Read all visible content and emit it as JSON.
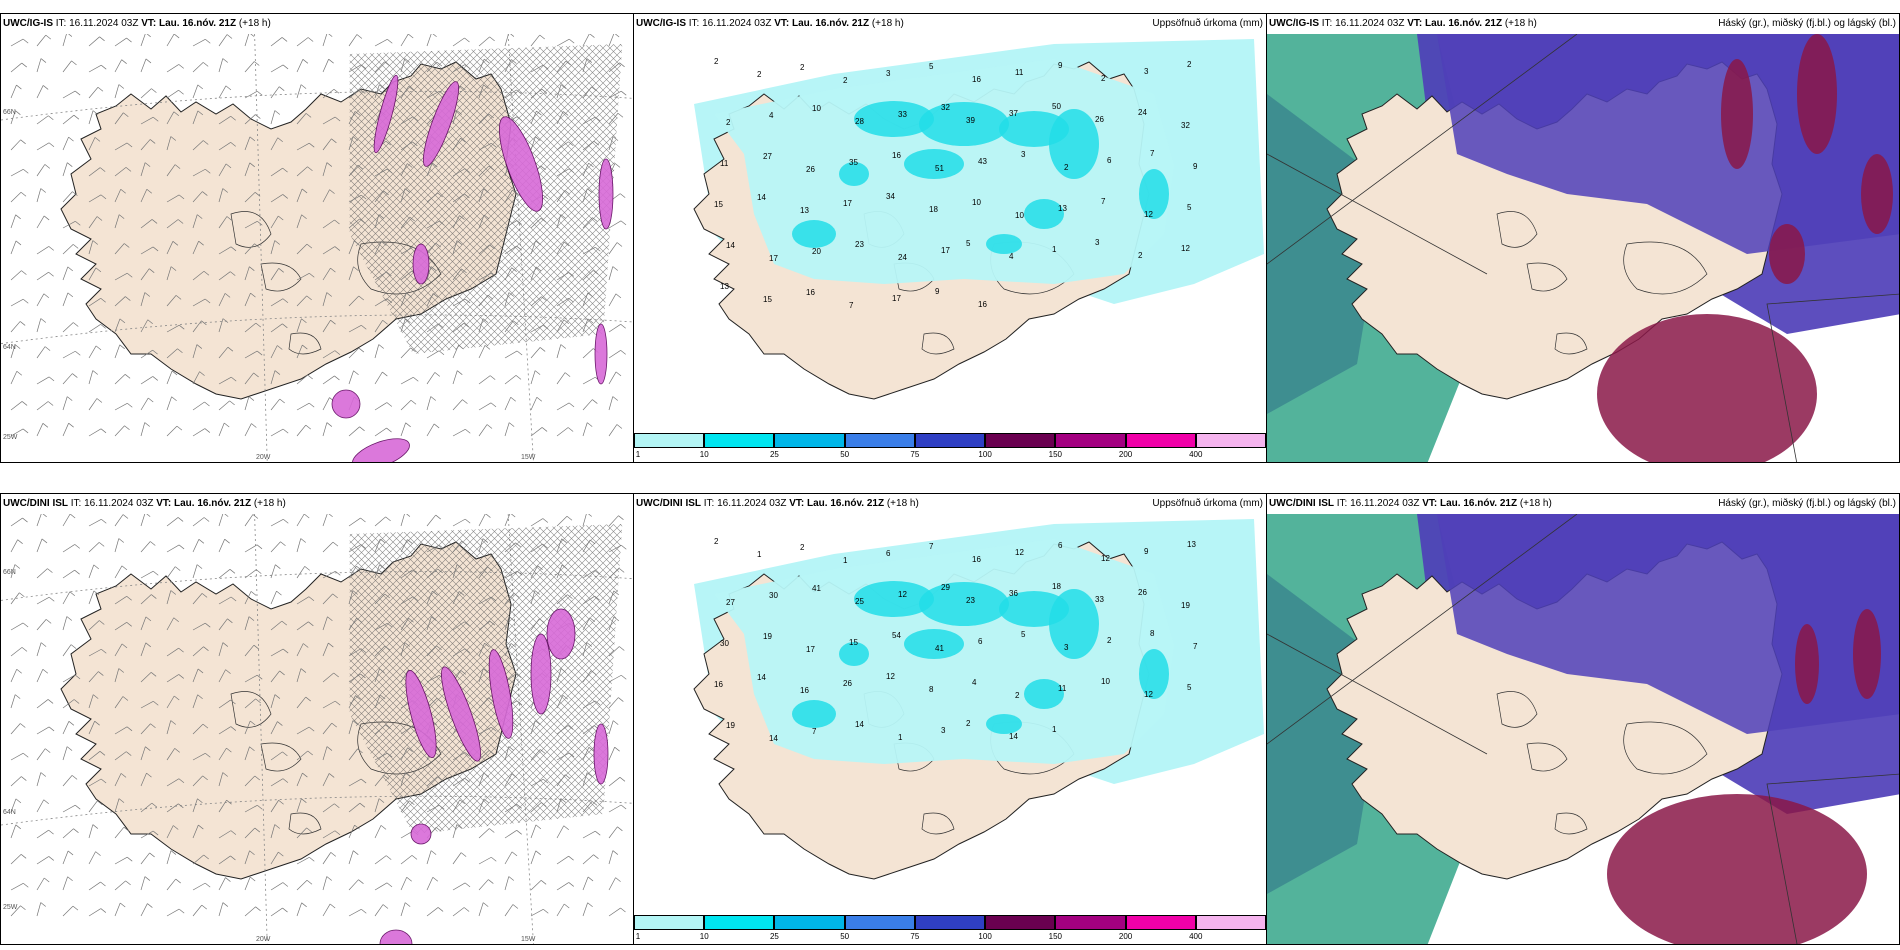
{
  "panels": [
    {
      "id": "p1",
      "model": "UWC/IG-IS",
      "it": "IT: 16.11.2024 03Z",
      "vt_label": "VT:",
      "vt": "Lau. 16.nóv. 21Z",
      "lead": "(+18 h)",
      "title_right": "",
      "type": "wind",
      "axis": {
        "lat_top": "66N",
        "lat_mid": "64N",
        "lat_bot": "25W",
        "lon1": "20W",
        "lon2": "15W"
      }
    },
    {
      "id": "p2",
      "model": "UWC/IG-IS",
      "it": "IT: 16.11.2024 03Z",
      "vt_label": "VT:",
      "vt": "Lau. 16.nóv. 21Z",
      "lead": "(+18 h)",
      "title_right": "Uppsöfnuð úrkoma (mm)",
      "type": "precip",
      "values": [
        "2",
        "2",
        "2",
        "2",
        "3",
        "5",
        "16",
        "11",
        "9",
        "2",
        "3",
        "2",
        "2",
        "4",
        "10",
        "28",
        "33",
        "32",
        "39",
        "37",
        "50",
        "26",
        "24",
        "32",
        "11",
        "27",
        "26",
        "35",
        "16",
        "51",
        "43",
        "3",
        "2",
        "6",
        "7",
        "9",
        "15",
        "14",
        "13",
        "17",
        "34",
        "18",
        "10",
        "10",
        "13",
        "7",
        "12",
        "5",
        "14",
        "17",
        "20",
        "23",
        "24",
        "17",
        "5",
        "4",
        "1",
        "3",
        "2",
        "12",
        "13",
        "15",
        "16",
        "7",
        "17",
        "9",
        "16"
      ]
    },
    {
      "id": "p3",
      "model": "UWC/IG-IS",
      "it": "IT: 16.11.2024 03Z",
      "vt_label": "VT:",
      "vt": "Lau. 16.nóv. 21Z",
      "lead": "(+18 h)",
      "title_right": "Háský (gr.), miðský (fj.bl.) og lágský (bl.)",
      "type": "cloud"
    },
    {
      "id": "p4",
      "model": "UWC/DINI ISL",
      "it": "IT: 16.11.2024 03Z",
      "vt_label": "VT:",
      "vt": "Lau. 16.nóv. 21Z",
      "lead": "(+18 h)",
      "title_right": "",
      "type": "wind",
      "axis": {
        "lat_top": "66N",
        "lat_mid": "64N",
        "lat_bot": "25W",
        "lon1": "20W",
        "lon2": "15W"
      }
    },
    {
      "id": "p5",
      "model": "UWC/DINI ISL",
      "it": "IT: 16.11.2024 03Z",
      "vt_label": "VT:",
      "vt": "Lau. 16.nóv. 21Z",
      "lead": "(+18 h)",
      "title_right": "Uppsöfnuð úrkoma (mm)",
      "type": "precip",
      "values": [
        "2",
        "1",
        "2",
        "1",
        "6",
        "7",
        "16",
        "12",
        "6",
        "12",
        "9",
        "13",
        "27",
        "30",
        "41",
        "25",
        "12",
        "29",
        "23",
        "36",
        "18",
        "33",
        "26",
        "19",
        "30",
        "19",
        "17",
        "15",
        "54",
        "41",
        "6",
        "5",
        "3",
        "2",
        "8",
        "7",
        "16",
        "14",
        "16",
        "26",
        "12",
        "8",
        "4",
        "2",
        "11",
        "10",
        "12",
        "5",
        "19",
        "14",
        "7",
        "14",
        "1",
        "3",
        "2",
        "14",
        "1"
      ]
    },
    {
      "id": "p6",
      "model": "UWC/DINI ISL",
      "it": "IT: 16.11.2024 03Z",
      "vt_label": "VT:",
      "vt": "Lau. 16.nóv. 21Z",
      "lead": "(+18 h)",
      "title_right": "Háský (gr.), miðský (fj.bl.) og lágský (bl.)",
      "type": "cloud"
    }
  ],
  "colorbar": {
    "labels": [
      "1",
      "10",
      "25",
      "50",
      "75",
      "100",
      "150",
      "200",
      "400"
    ],
    "colors": [
      "#b3f5f5",
      "#00e5f0",
      "#00b6e8",
      "#3a7ee8",
      "#2f3fc4",
      "#6a0050",
      "#a30080",
      "#f000a8",
      "#f5b4ee"
    ]
  },
  "colors": {
    "land": "#f4e4d4",
    "precip_light": "#b7f5f7",
    "precip_mid": "#22dde8",
    "precip_heavy": "#06c6dd",
    "wind_precip": "#d86ad8",
    "high_cloud": "#4f3fb8",
    "mid_cloud": "#8a1848",
    "low_cloud": "#1a9a7a"
  }
}
